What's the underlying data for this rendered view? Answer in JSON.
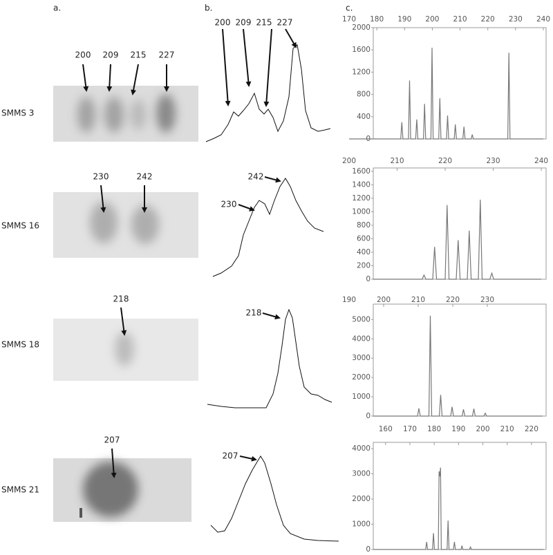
{
  "panel_labels": [
    "a.",
    "b.",
    "c."
  ],
  "samples": [
    {
      "name": "SMMS 3",
      "gel_labels": [
        "200",
        "209",
        "215",
        "227"
      ],
      "trace_labels": [
        "200",
        "209",
        "215",
        "227"
      ]
    },
    {
      "name": "SMMS 16",
      "gel_labels": [
        "230",
        "242"
      ],
      "trace_labels": [
        "230",
        "242"
      ]
    },
    {
      "name": "SMMS 18",
      "gel_labels": [
        "218"
      ],
      "trace_labels": [
        "218"
      ]
    },
    {
      "name": "SMMS 21",
      "gel_labels": [
        "207"
      ],
      "trace_labels": [
        "207"
      ]
    }
  ],
  "chart_data": [
    {
      "type": "line",
      "color": "#777777",
      "xlim": [
        170,
        241
      ],
      "xticks": [
        170,
        180,
        190,
        200,
        210,
        220,
        230,
        240
      ],
      "ylim": [
        0,
        2000
      ],
      "yticks": [
        0,
        400,
        800,
        1200,
        1600,
        2000
      ],
      "x": [
        170,
        188.6,
        189,
        189.4,
        191.4,
        191.8,
        192.2,
        194,
        194.4,
        194.8,
        196.8,
        197.2,
        197.6,
        199.5,
        199.9,
        200.3,
        202.3,
        202.7,
        203.1,
        205.1,
        205.5,
        205.9,
        207.9,
        208.3,
        208.7,
        211,
        211.4,
        211.8,
        214,
        214.4,
        214.8,
        227.2,
        227.6,
        228,
        240
      ],
      "values": [
        0,
        0,
        300,
        0,
        0,
        1050,
        0,
        0,
        350,
        0,
        0,
        630,
        0,
        0,
        1640,
        0,
        0,
        730,
        0,
        0,
        420,
        0,
        0,
        260,
        0,
        0,
        220,
        0,
        0,
        80,
        0,
        0,
        1550,
        0,
        0
      ]
    },
    {
      "type": "line",
      "color": "#777777",
      "xlim": [
        200,
        241
      ],
      "xticks": [
        200,
        210,
        220,
        230,
        240
      ],
      "ylim": [
        0,
        1650
      ],
      "yticks": [
        0,
        200,
        400,
        600,
        800,
        1000,
        1200,
        1400,
        1600
      ],
      "x": [
        205,
        215.2,
        215.6,
        216,
        217.4,
        217.8,
        218.2,
        220,
        220.4,
        220.8,
        222.3,
        222.7,
        223.1,
        224.6,
        225,
        225.4,
        226.9,
        227.3,
        227.7,
        229.3,
        229.7,
        230.1,
        240
      ],
      "values": [
        0,
        0,
        60,
        0,
        0,
        480,
        0,
        0,
        1100,
        0,
        0,
        580,
        0,
        0,
        720,
        0,
        0,
        1180,
        0,
        0,
        90,
        0,
        0
      ]
    },
    {
      "type": "line",
      "color": "#777777",
      "xlim": [
        190,
        247
      ],
      "xticks": [
        190,
        200,
        210,
        220,
        230
      ],
      "ylim": [
        0,
        5800
      ],
      "yticks": [
        0,
        1000,
        2000,
        3000,
        4000,
        5000
      ],
      "x": [
        197,
        209.8,
        210.2,
        210.6,
        213.1,
        213.5,
        213.9,
        216.1,
        216.5,
        216.9,
        219.4,
        219.8,
        220.2,
        222.7,
        223.1,
        223.5,
        225.7,
        226.1,
        226.5,
        229,
        229.4,
        229.8,
        246
      ],
      "values": [
        0,
        0,
        400,
        0,
        0,
        5200,
        0,
        0,
        1100,
        0,
        0,
        480,
        0,
        0,
        350,
        0,
        0,
        380,
        0,
        0,
        150,
        0,
        0
      ]
    },
    {
      "type": "line",
      "color": "#777777",
      "xlim": [
        145,
        226
      ],
      "xticks": [
        160,
        170,
        180,
        190,
        200,
        210,
        220
      ],
      "ylim": [
        0,
        4250
      ],
      "yticks": [
        0,
        1000,
        2000,
        3000,
        4000
      ],
      "x": [
        155,
        176.5,
        176.9,
        177.3,
        179.3,
        179.7,
        180.1,
        181.7,
        182,
        182.3,
        182.6,
        182.9,
        185.3,
        185.7,
        186.1,
        187.9,
        188.3,
        188.7,
        191,
        191.4,
        191.8,
        194.5,
        194.9,
        195.3,
        225
      ],
      "values": [
        0,
        0,
        300,
        0,
        0,
        650,
        0,
        0,
        3100,
        2900,
        3250,
        0,
        0,
        1150,
        0,
        0,
        300,
        0,
        0,
        150,
        0,
        0,
        100,
        0,
        0
      ]
    }
  ]
}
